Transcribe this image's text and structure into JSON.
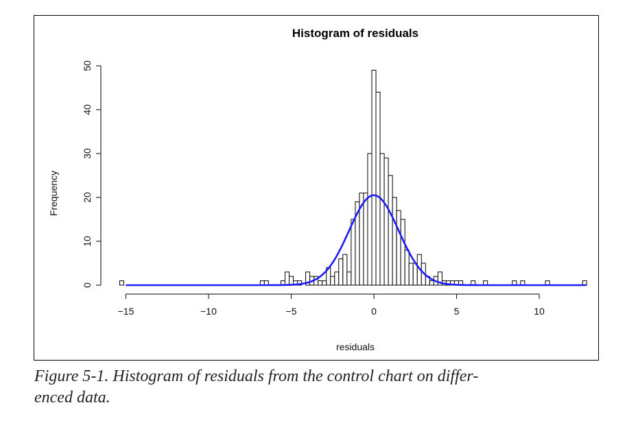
{
  "caption": {
    "line1": "Figure 5-1. Histogram of residuals from the control chart on differ-",
    "line2": "enced data."
  },
  "chart_data": {
    "type": "bar",
    "title": "Histogram of residuals",
    "xlabel": "residuals",
    "ylabel": "Frequency",
    "xlim": [
      -15.5,
      13
    ],
    "ylim": [
      0,
      52
    ],
    "x_ticks": [
      -15,
      -10,
      -5,
      0,
      5,
      10
    ],
    "x_tick_labels": [
      "−15",
      "−10",
      "−5",
      "0",
      "5",
      "10"
    ],
    "y_ticks": [
      0,
      10,
      20,
      30,
      40,
      50
    ],
    "y_tick_labels": [
      "0",
      "10",
      "20",
      "30",
      "40",
      "50"
    ],
    "bin_width": 0.25,
    "bins": [
      {
        "x": -15.25,
        "count": 1
      },
      {
        "x": -6.75,
        "count": 1
      },
      {
        "x": -6.5,
        "count": 1
      },
      {
        "x": -5.5,
        "count": 1
      },
      {
        "x": -5.25,
        "count": 3
      },
      {
        "x": -5.0,
        "count": 2
      },
      {
        "x": -4.75,
        "count": 1
      },
      {
        "x": -4.5,
        "count": 1
      },
      {
        "x": -4.0,
        "count": 3
      },
      {
        "x": -3.75,
        "count": 2
      },
      {
        "x": -3.5,
        "count": 2
      },
      {
        "x": -3.25,
        "count": 1
      },
      {
        "x": -3.0,
        "count": 1
      },
      {
        "x": -2.75,
        "count": 4
      },
      {
        "x": -2.5,
        "count": 2
      },
      {
        "x": -2.25,
        "count": 3
      },
      {
        "x": -2.0,
        "count": 6
      },
      {
        "x": -1.75,
        "count": 7
      },
      {
        "x": -1.5,
        "count": 3
      },
      {
        "x": -1.25,
        "count": 15
      },
      {
        "x": -1.0,
        "count": 19
      },
      {
        "x": -0.75,
        "count": 21
      },
      {
        "x": -0.5,
        "count": 21
      },
      {
        "x": -0.25,
        "count": 30
      },
      {
        "x": 0.0,
        "count": 49
      },
      {
        "x": 0.25,
        "count": 44
      },
      {
        "x": 0.5,
        "count": 30
      },
      {
        "x": 0.75,
        "count": 29
      },
      {
        "x": 1.0,
        "count": 25
      },
      {
        "x": 1.25,
        "count": 20
      },
      {
        "x": 1.5,
        "count": 17
      },
      {
        "x": 1.75,
        "count": 15
      },
      {
        "x": 2.0,
        "count": 8
      },
      {
        "x": 2.25,
        "count": 5
      },
      {
        "x": 2.5,
        "count": 5
      },
      {
        "x": 2.75,
        "count": 7
      },
      {
        "x": 3.0,
        "count": 5
      },
      {
        "x": 3.25,
        "count": 2
      },
      {
        "x": 3.5,
        "count": 1
      },
      {
        "x": 3.75,
        "count": 2
      },
      {
        "x": 4.0,
        "count": 3
      },
      {
        "x": 4.25,
        "count": 1
      },
      {
        "x": 4.5,
        "count": 1
      },
      {
        "x": 4.75,
        "count": 1
      },
      {
        "x": 5.0,
        "count": 1
      },
      {
        "x": 5.25,
        "count": 1
      },
      {
        "x": 6.0,
        "count": 1
      },
      {
        "x": 6.75,
        "count": 1
      },
      {
        "x": 8.5,
        "count": 1
      },
      {
        "x": 9.0,
        "count": 1
      },
      {
        "x": 10.5,
        "count": 1
      },
      {
        "x": 12.75,
        "count": 1
      }
    ],
    "overlay_curve": {
      "type": "normal-density",
      "mean": 0.0,
      "sd": 1.5,
      "peak": 20.5,
      "color": "#1a1aff"
    },
    "bar_fill": "#ffffff",
    "bar_stroke": "#000000",
    "grid": false
  }
}
